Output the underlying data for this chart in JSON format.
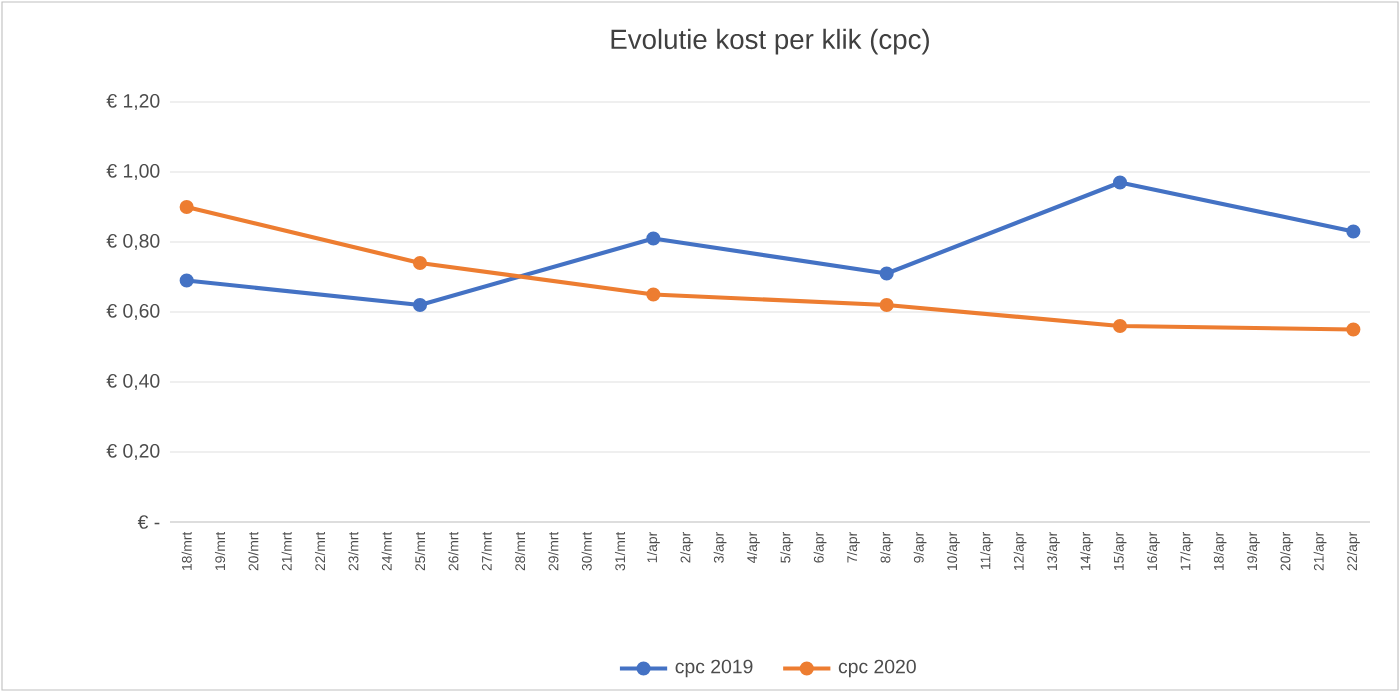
{
  "chart_data": {
    "type": "line",
    "title": "Evolutie kost per klik (cpc)",
    "categories": [
      "18/mrt",
      "19/mrt",
      "20/mrt",
      "21/mrt",
      "22/mrt",
      "23/mrt",
      "24/mrt",
      "25/mrt",
      "26/mrt",
      "27/mrt",
      "28/mrt",
      "29/mrt",
      "30/mrt",
      "31/mrt",
      "1/apr",
      "2/apr",
      "3/apr",
      "4/apr",
      "5/apr",
      "6/apr",
      "7/apr",
      "8/apr",
      "9/apr",
      "10/apr",
      "11/apr",
      "12/apr",
      "13/apr",
      "14/apr",
      "15/apr",
      "16/apr",
      "17/apr",
      "18/apr",
      "19/apr",
      "20/apr",
      "21/apr",
      "22/apr"
    ],
    "series": [
      {
        "name": "cpc 2019",
        "color": "#4472c4",
        "values": [
          0.69,
          null,
          null,
          null,
          null,
          null,
          null,
          0.62,
          null,
          null,
          null,
          null,
          null,
          null,
          0.81,
          null,
          null,
          null,
          null,
          null,
          null,
          0.71,
          null,
          null,
          null,
          null,
          null,
          null,
          0.97,
          null,
          null,
          null,
          null,
          null,
          null,
          0.83
        ]
      },
      {
        "name": "cpc 2020",
        "color": "#ed7d31",
        "values": [
          0.9,
          null,
          null,
          null,
          null,
          null,
          null,
          0.74,
          null,
          null,
          null,
          null,
          null,
          null,
          0.65,
          null,
          null,
          null,
          null,
          null,
          null,
          0.62,
          null,
          null,
          null,
          null,
          null,
          null,
          0.56,
          null,
          null,
          null,
          null,
          null,
          null,
          0.55
        ]
      }
    ],
    "ylim": [
      0,
      1.2
    ],
    "yticks": [
      {
        "value": 0,
        "label": "€ -"
      },
      {
        "value": 0.2,
        "label": "€ 0,20"
      },
      {
        "value": 0.4,
        "label": "€ 0,40"
      },
      {
        "value": 0.6,
        "label": "€ 0,60"
      },
      {
        "value": 0.8,
        "label": "€ 0,80"
      },
      {
        "value": 1.0,
        "label": "€ 1,00"
      },
      {
        "value": 1.2,
        "label": "€ 1,20"
      }
    ],
    "grid": "y",
    "legend": "bottom",
    "marker": "circle",
    "line_style": "solid"
  }
}
